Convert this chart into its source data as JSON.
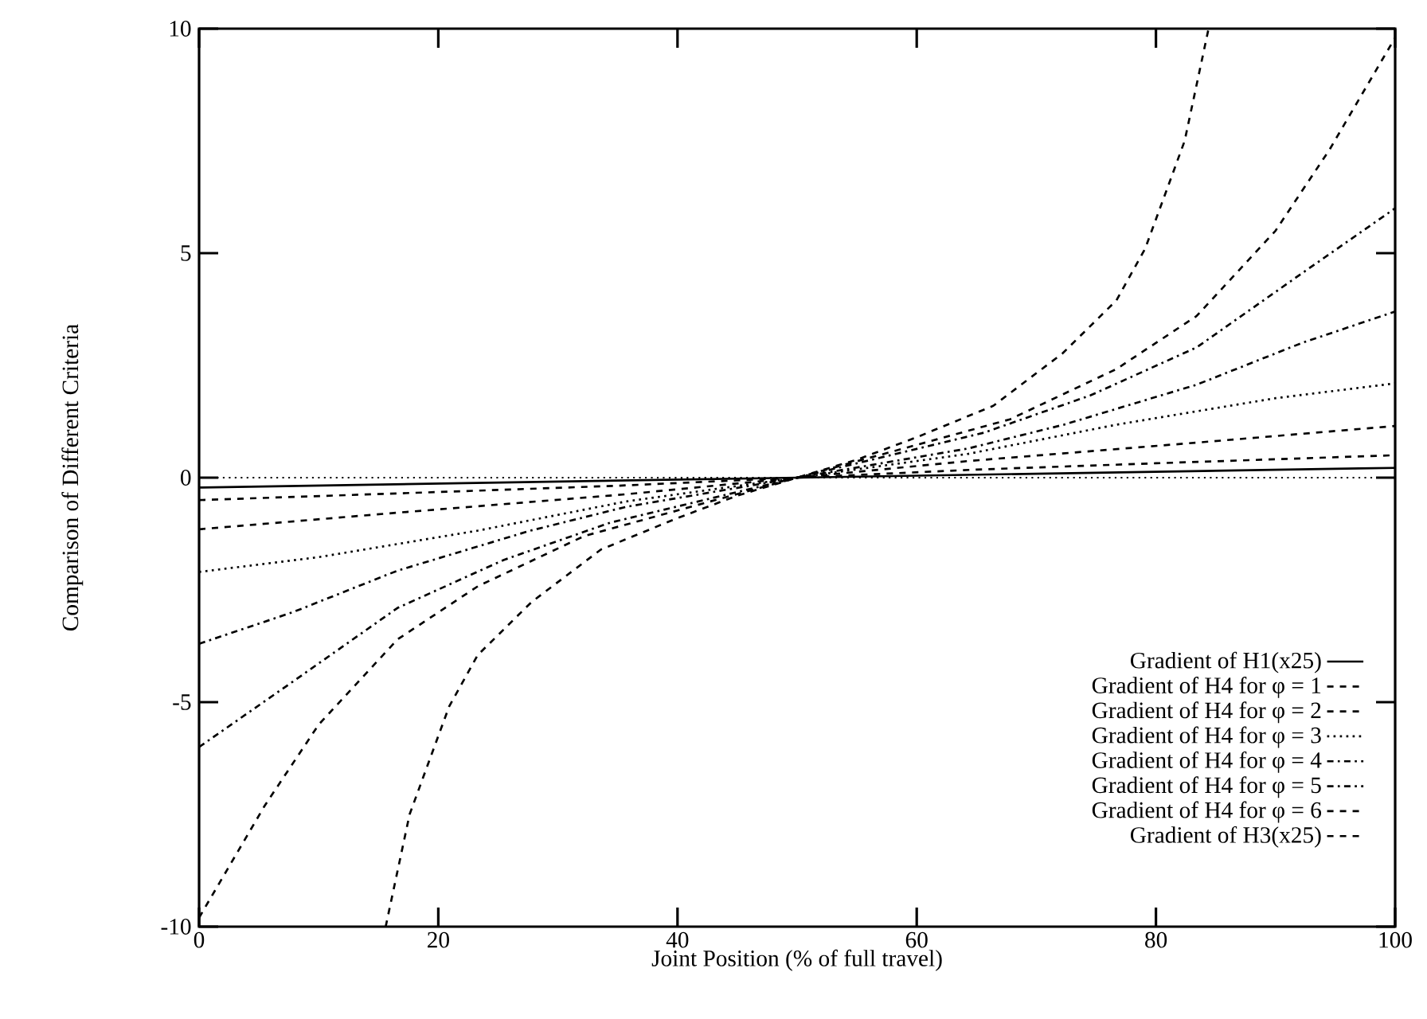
{
  "chart_data": {
    "type": "line",
    "xlabel": "Joint Position (% of full travel)",
    "ylabel": "Comparison of Different Criteria",
    "xlim": [
      0,
      100
    ],
    "ylim": [
      -10,
      10
    ],
    "xticks": [
      0,
      20,
      40,
      60,
      80,
      100
    ],
    "yticks": [
      -10,
      -5,
      0,
      5,
      10
    ],
    "grid": false,
    "legend": "bottom right",
    "marker": "none",
    "ref_lines": [
      {
        "axis": "y",
        "value": 0,
        "line_style": "dotted",
        "color": "#000000"
      }
    ],
    "series": [
      {
        "name": "Gradient of H1(x25)",
        "color": "#000000",
        "line_style": "solid",
        "x": [
          0,
          100
        ],
        "values": [
          -0.22,
          0.22
        ]
      },
      {
        "name": "Gradient of H4 for φ = 1",
        "color": "#000000",
        "line_style": "dashed",
        "x": [
          0,
          20,
          35,
          50,
          65,
          80,
          100
        ],
        "values": [
          -0.5,
          -0.32,
          -0.18,
          0,
          0.18,
          0.32,
          0.5
        ]
      },
      {
        "name": "Gradient of H4 for φ = 2",
        "color": "#000000",
        "line_style": "dashed",
        "x": [
          0,
          16.6,
          35.7,
          50,
          64.3,
          83.4,
          100
        ],
        "values": [
          -1.15,
          -0.78,
          -0.37,
          0,
          0.37,
          0.78,
          1.15
        ]
      },
      {
        "name": "Gradient of H4 for φ = 3",
        "color": "#000000",
        "line_style": "dotted",
        "x": [
          0,
          10,
          23.3,
          35.7,
          50,
          64.3,
          76.7,
          90,
          100
        ],
        "values": [
          -2.1,
          -1.77,
          -1.18,
          -0.53,
          0,
          0.53,
          1.18,
          1.77,
          2.1
        ]
      },
      {
        "name": "Gradient of H4 for φ = 4",
        "color": "#000000",
        "line_style": "dashdot",
        "x": [
          0,
          7.8,
          16.6,
          27.7,
          35.7,
          50,
          64.3,
          72.3,
          83.4,
          92.2,
          100
        ],
        "values": [
          -3.7,
          -3.0,
          -2.07,
          -1.18,
          -0.65,
          0,
          0.65,
          1.18,
          2.07,
          3.0,
          3.7
        ]
      },
      {
        "name": "Gradient of H4 for φ = 5",
        "color": "#000000",
        "line_style": "dashdot",
        "x": [
          0,
          7.8,
          16.6,
          25.5,
          34.4,
          50,
          65.6,
          74.5,
          83.4,
          92.2,
          100
        ],
        "values": [
          -6.0,
          -4.55,
          -2.9,
          -1.83,
          -1.0,
          0,
          1.0,
          1.83,
          2.9,
          4.55,
          6.0
        ]
      },
      {
        "name": "Gradient of H4 for φ = 6",
        "color": "#000000",
        "line_style": "dashed",
        "x": [
          0,
          5.5,
          10,
          16.6,
          23.3,
          32.2,
          50,
          67.8,
          76.7,
          83.4,
          90,
          94.5,
          100
        ],
        "values": [
          -9.8,
          -7.3,
          -5.5,
          -3.6,
          -2.42,
          -1.3,
          0,
          1.3,
          2.42,
          3.6,
          5.5,
          7.3,
          9.8
        ]
      },
      {
        "name": "Gradient of H3(x25)",
        "color": "#000000",
        "line_style": "dashed",
        "x": [
          15.6,
          17.6,
          20.9,
          23.3,
          27.8,
          33.6,
          40,
          45,
          50,
          55,
          60,
          66.4,
          72.2,
          76.7,
          79.1,
          82.4,
          84.4
        ],
        "values": [
          -10,
          -7.5,
          -5.1,
          -3.95,
          -2.77,
          -1.6,
          -0.9,
          -0.4,
          0,
          0.4,
          0.9,
          1.6,
          2.77,
          3.95,
          5.1,
          7.5,
          10
        ]
      }
    ]
  }
}
